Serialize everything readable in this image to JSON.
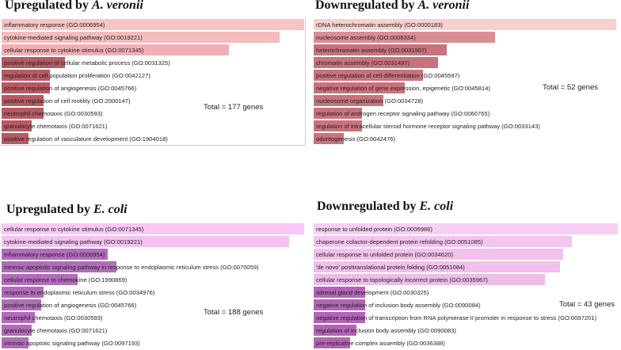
{
  "chart_data": [
    {
      "type": "bar",
      "orientation": "horizontal",
      "title": "Upregulated by A. veronii",
      "title_plain": "Upregulated by ",
      "title_species": "A. veronii",
      "total_label": "Total = 177 genes",
      "categories": [
        "inflammatory response (GO:0006954)",
        "cytokine-mediated signaling pathway (GO:0019221)",
        "cellular response to cytokine stimulus (GO:0071345)",
        "positive regulation of cellular metabolic process (GO:0031325)",
        "regulation of cell population proliferation (GO:0042127)",
        "positive regulation of angiogenesis (GO:0045766)",
        "positive regulation of cell motility (GO:2000147)",
        "neutrophil chemotaxis (GO:0030593)",
        "granulocyte chemotaxis (GO:0071621)",
        "positive regulation of vasculature development (GO:1904018)"
      ],
      "values": [
        100,
        92,
        75,
        21,
        16,
        16,
        14,
        14,
        10,
        9
      ],
      "colors": [
        "#f8c4c4",
        "#f4bcbc",
        "#eeb0b6",
        "#b85a63",
        "#b85a63",
        "#b85a63",
        "#b85a63",
        "#b85a63",
        "#b85a63",
        "#b85a63"
      ],
      "value_unit": "relative bar length (percent of longest bar)"
    },
    {
      "type": "bar",
      "orientation": "horizontal",
      "title": "Downregulated by A. veronii",
      "title_plain": "Downregulated by ",
      "title_species": "A. veronii",
      "total_label": "Total = 52 genes",
      "categories": [
        "rDNA heterochromatin assembly (GO:0000183)",
        "nucleosome assembly (GO:0006334)",
        "heterochromatin assembly (GO:0031507)",
        "chromatin assembly (GO:0031497)",
        "positive regulation of cell differentiation (GO:0045597)",
        "negative regulation of gene expression, epigenetic (GO:0045814)",
        "nucleosome organization (GO:0034728)",
        "regulation of androgen receptor signaling pathway (GO:0060765)",
        "regulation of intracellular steroid hormone receptor signaling pathway (GO:0033143)",
        "odontogenesis (GO:0042476)"
      ],
      "values": [
        100,
        60,
        44,
        41,
        36,
        30,
        23,
        16,
        16,
        10
      ],
      "colors": [
        "#f9cfcf",
        "#d98d94",
        "#c8737c",
        "#c8737c",
        "#c8737c",
        "#c8737c",
        "#c8737c",
        "#c8737c",
        "#c8737c",
        "#c8737c"
      ],
      "value_unit": "relative bar length (percent of longest bar)"
    },
    {
      "type": "bar",
      "orientation": "horizontal",
      "title": "Upregulated by E. coli",
      "title_plain": "Upregulated by ",
      "title_species": "E. coli",
      "total_label": "Total = 188 genes",
      "categories": [
        "cellular response to cytokine stimulus (GO:0071345)",
        "cytokine-mediated signaling pathway (GO:0019221)",
        "inflammatory response (GO:0006954)",
        "intrinsic apoptotic signaling pathway in response to endoplasmic reticulum stress (GO:0070059)",
        "cellular response to chemokine (GO:1990869)",
        "response to endoplasmic reticulum stress (GO:0034976)",
        "positive regulation of angiogenesis (GO:0045766)",
        "neutrophil chemotaxis (GO:0030593)",
        "granulocyte chemotaxis (GO:0071621)",
        "intrinsic apoptotic signaling pathway (GO:0097193)"
      ],
      "values": [
        100,
        95,
        35,
        38,
        25,
        14,
        13,
        11,
        10,
        9
      ],
      "colors": [
        "#fac8f6",
        "#f3c2ef",
        "#b36bbb",
        "#b36bbb",
        "#b36bbb",
        "#b36bbb",
        "#b36bbb",
        "#b36bbb",
        "#b36bbb",
        "#b36bbb"
      ],
      "value_unit": "relative bar length (percent of longest bar)"
    },
    {
      "type": "bar",
      "orientation": "horizontal",
      "title": "Downregulated by E. coli",
      "title_plain": "Downregulated by ",
      "title_species": "E. coli",
      "total_label": "Total = 43 genes",
      "categories": [
        "response to unfolded protein (GO:0006986)",
        "chaperone cofactor-dependent protein refolding (GO:0051085)",
        "cellular response to unfolded protein (GO:0034620)",
        "'de novo' posttranslational protein folding (GO:0051084)",
        "cellular response to topologically incorrect protein (GO:0035967)",
        "adrenal gland development (GO:0030325)",
        "negative regulation of inclusion body assembly (GO:0090084)",
        "negative regulation of transcription from RNA polymerase II promoter in response to stress (GO:0097201)",
        "regulation of inclusion body assembly (GO:0090083)",
        "pre-replicative complex assembly (GO:0036388)"
      ],
      "values": [
        100,
        85,
        82,
        81,
        76,
        17,
        17,
        17,
        14,
        12
      ],
      "colors": [
        "#f7cff5",
        "#f3c4ef",
        "#f1c1ec",
        "#f0bfeb",
        "#eebce9",
        "#b364b7",
        "#b364b7",
        "#b364b7",
        "#b364b7",
        "#b364b7"
      ],
      "value_unit": "relative bar length (percent of longest bar)"
    }
  ]
}
